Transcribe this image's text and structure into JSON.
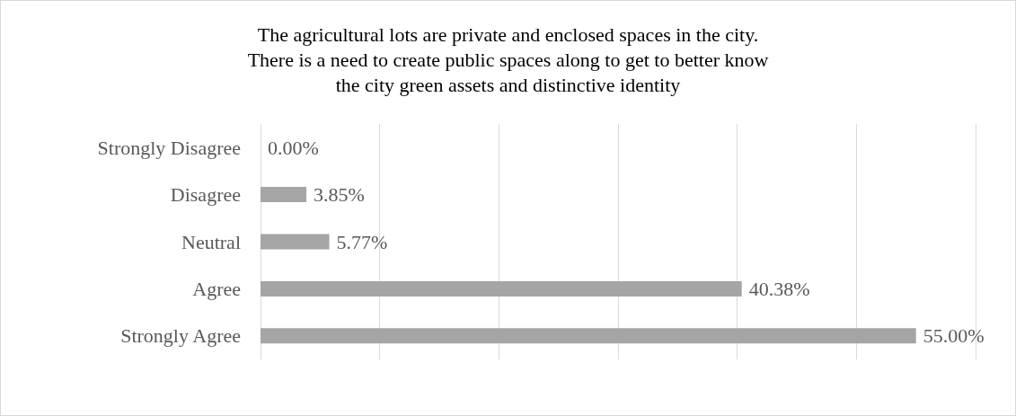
{
  "chart_data": {
    "type": "bar",
    "orientation": "horizontal",
    "title": "The agricultural lots are private and enclosed spaces in the city.\nThere is a need to create public spaces along to get to better know\nthe city green assets and distinctive identity",
    "categories": [
      "Strongly Disagree",
      "Disagree",
      "Neutral",
      "Agree",
      "Strongly Agree"
    ],
    "values": [
      0,
      3.85,
      5.77,
      40.38,
      55
    ],
    "value_labels": [
      "0.00%",
      "3.85%",
      "5.77%",
      "40.38%",
      "55.00%"
    ],
    "color": "#a5a5a5",
    "xlim": [
      0,
      60
    ],
    "xticks": [
      {
        "value": 0,
        "label": null
      },
      {
        "value": 10,
        "label": null
      },
      {
        "value": 20,
        "label": null
      },
      {
        "value": 30,
        "label": null
      },
      {
        "value": 40,
        "label": null
      },
      {
        "value": 50,
        "label": null
      },
      {
        "value": 60,
        "label": null
      }
    ],
    "tick_labels": "y",
    "grid": "x"
  }
}
